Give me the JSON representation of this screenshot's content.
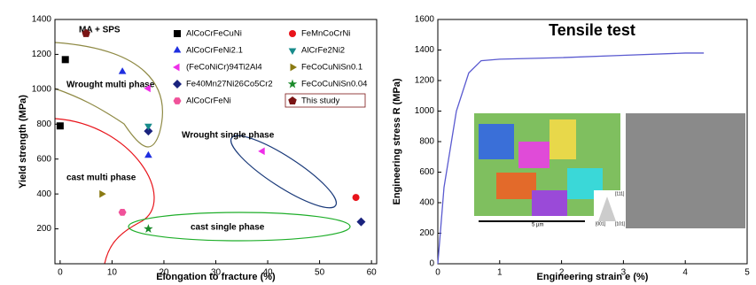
{
  "chart_data": [
    {
      "type": "scatter",
      "x_label": "Elongation to fracture (%)",
      "y_label": "Yield strength (MPa)",
      "xlim": [
        -1,
        61
      ],
      "xticks": [
        0,
        10,
        20,
        30,
        40,
        50,
        60
      ],
      "ylim": [
        0,
        1400
      ],
      "yticks": [
        200,
        400,
        600,
        800,
        1000,
        1200,
        1400
      ],
      "annotations": [
        "MA + SPS",
        "Wrought multi phase",
        "cast multi phase",
        "Wrought single phase",
        "cast single phase"
      ],
      "series": [
        {
          "name": "AlCoCrFeCuNi",
          "color": "#000000",
          "marker": "square",
          "x": [
            1,
            0
          ],
          "values": [
            1170,
            790
          ]
        },
        {
          "name": "AlCoCrFeNi2.1",
          "color": "#1f2fe0",
          "marker": "triangle",
          "x": [
            12,
            17
          ],
          "values": [
            1100,
            620
          ]
        },
        {
          "name": "(FeCoNiCr)94Ti2Al4",
          "color": "#ee2ee8",
          "marker": "triangle-left",
          "x": [
            17,
            39
          ],
          "values": [
            1005,
            645
          ]
        },
        {
          "name": "Fe40Mn27Ni26Co5Cr2",
          "color": "#1a237e",
          "marker": "diamond",
          "x": [
            17,
            58
          ],
          "values": [
            760,
            240
          ]
        },
        {
          "name": "AlCoCrFeNi",
          "color": "#f0529a",
          "marker": "hexagon",
          "x": [
            12
          ],
          "values": [
            295
          ]
        },
        {
          "name": "FeMnCoCrNi",
          "color": "#e8141b",
          "marker": "circle",
          "x": [
            57
          ],
          "values": [
            380
          ]
        },
        {
          "name": "AlCrFe2Ni2",
          "color": "#178b8b",
          "marker": "triangle-down",
          "x": [
            17
          ],
          "values": [
            790
          ]
        },
        {
          "name": "FeCoCuNiSn0.1",
          "color": "#8a7a12",
          "marker": "triangle-right",
          "x": [
            8
          ],
          "values": [
            400
          ]
        },
        {
          "name": "FeCoCuNiSn0.04",
          "color": "#1a8a2a",
          "marker": "star",
          "x": [
            17
          ],
          "values": [
            200
          ]
        },
        {
          "name": "This study",
          "color": "#7a1414",
          "marker": "pentagon",
          "x": [
            5
          ],
          "values": [
            1320
          ]
        }
      ]
    },
    {
      "type": "line",
      "title": "Tensile test",
      "x_label": "Engineering strain e (%)",
      "y_label": "Engineering stress R (MPa)",
      "xlim": [
        0,
        5
      ],
      "xticks": [
        0,
        1,
        2,
        3,
        4,
        5
      ],
      "ylim": [
        0,
        1600
      ],
      "yticks": [
        0,
        200,
        400,
        600,
        800,
        1000,
        1200,
        1400,
        1600
      ],
      "inset_labels": [
        "5 µm",
        "[111]",
        "[001]",
        "[101]"
      ],
      "series": [
        {
          "color": "#5a5ad0",
          "x": [
            0,
            0.1,
            0.3,
            0.5,
            0.7,
            1,
            2,
            3,
            4,
            4.3
          ],
          "values": [
            0,
            500,
            1000,
            1250,
            1330,
            1340,
            1350,
            1365,
            1380,
            1380
          ]
        }
      ]
    }
  ]
}
